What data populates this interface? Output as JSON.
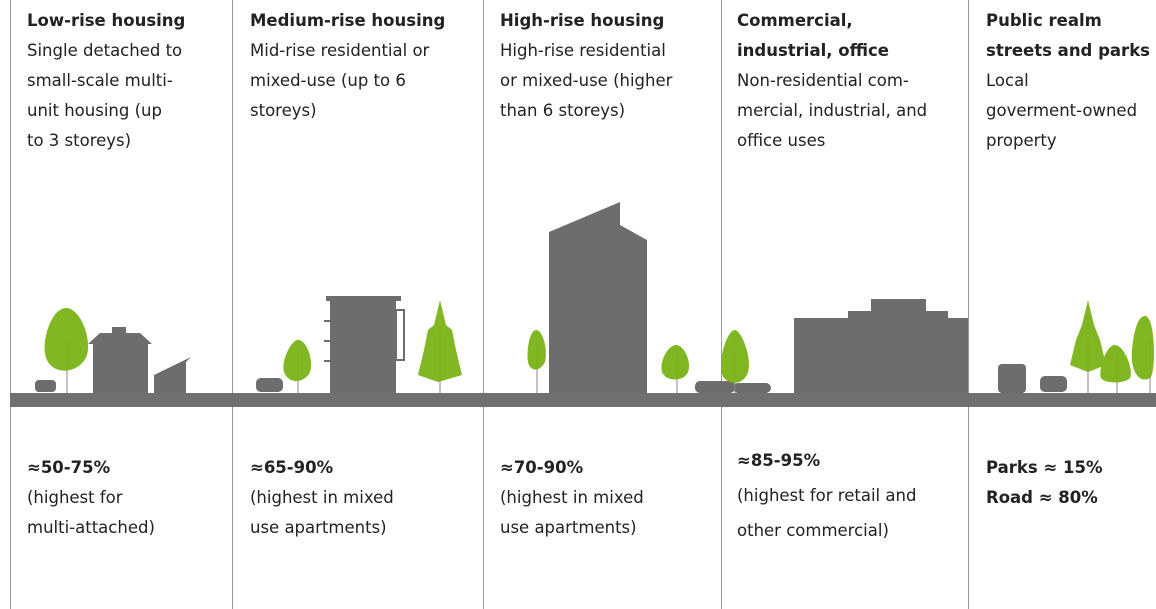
{
  "columns": [
    {
      "title": [
        "Low-rise housing"
      ],
      "description": [
        "Single detached to",
        "small-scale multi-",
        "unit housing (up",
        "to 3 storeys)"
      ],
      "stat": [
        "≈50-75%"
      ],
      "note": [
        "(highest for",
        "multi-attached)"
      ]
    },
    {
      "title": [
        "Medium-rise housing"
      ],
      "description": [
        "Mid-rise residential or",
        "mixed-use (up to 6",
        "storeys)"
      ],
      "stat": [
        "≈65-90%"
      ],
      "note": [
        "(highest in mixed",
        "use apartments)"
      ]
    },
    {
      "title": [
        "High-rise housing"
      ],
      "description": [
        "High-rise residential",
        "or mixed-use (higher",
        "than 6 storeys)"
      ],
      "stat": [
        "≈70-90%"
      ],
      "note": [
        "(highest in mixed",
        "use apartments)"
      ]
    },
    {
      "title": [
        "Commercial,",
        "industrial, office"
      ],
      "description": [
        "Non-residential com-",
        "mercial, industrial, and",
        "office uses"
      ],
      "stat": [
        "≈85-95%"
      ],
      "note": [
        "(highest for retail and",
        "other commercial)"
      ]
    },
    {
      "title": [
        "Public realm",
        "streets and parks"
      ],
      "description": [
        "Local",
        "goverment-owned",
        "property"
      ],
      "stat": [
        "Parks ≈ 15%",
        "Road ≈ 80%"
      ]
    }
  ]
}
